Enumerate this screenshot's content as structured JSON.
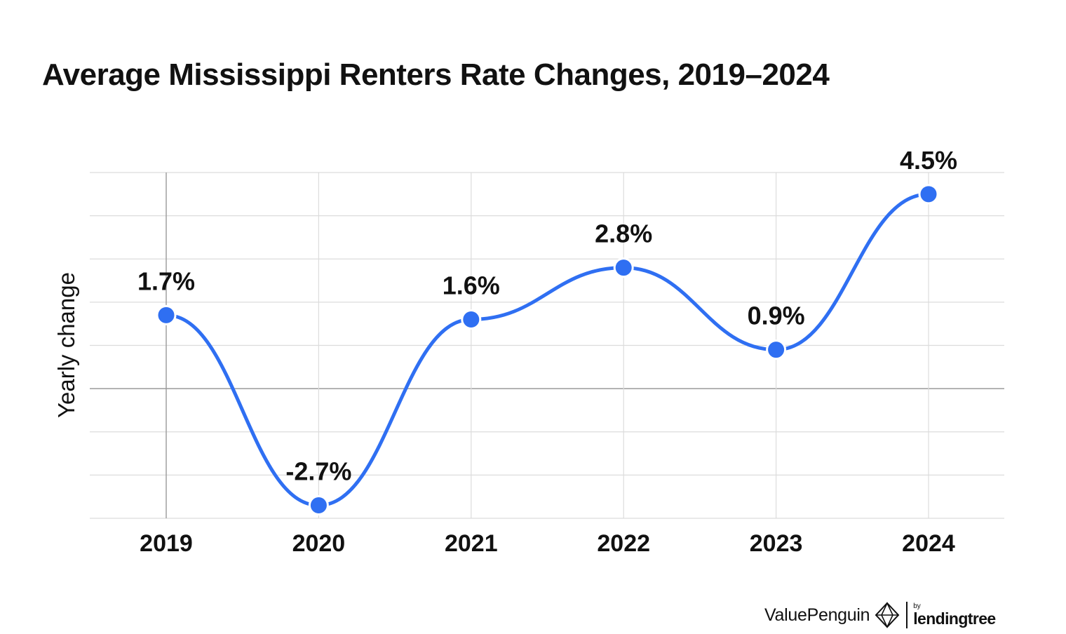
{
  "chart_data": {
    "type": "line",
    "title": "Average Mississippi Renters Rate Changes, 2019–2024",
    "ylabel": "Yearly change",
    "xlabel": "",
    "categories": [
      "2019",
      "2020",
      "2021",
      "2022",
      "2023",
      "2024"
    ],
    "values": [
      1.7,
      -2.7,
      1.6,
      2.8,
      0.9,
      4.5
    ],
    "data_labels": [
      "1.7%",
      "-2.7%",
      "1.6%",
      "2.8%",
      "0.9%",
      "4.5%"
    ],
    "ylim": [
      -3,
      5
    ],
    "grid": true,
    "smooth": true,
    "legend": "none",
    "colors": {
      "line": "#2f6ff2",
      "marker": "#2f6ff2",
      "grid": "#dcdcdc",
      "zero_line": "#9a9a9a",
      "text": "#111111"
    }
  },
  "footer": {
    "brand": "ValuePenguin",
    "by": "by",
    "partner": "lendingtree"
  }
}
